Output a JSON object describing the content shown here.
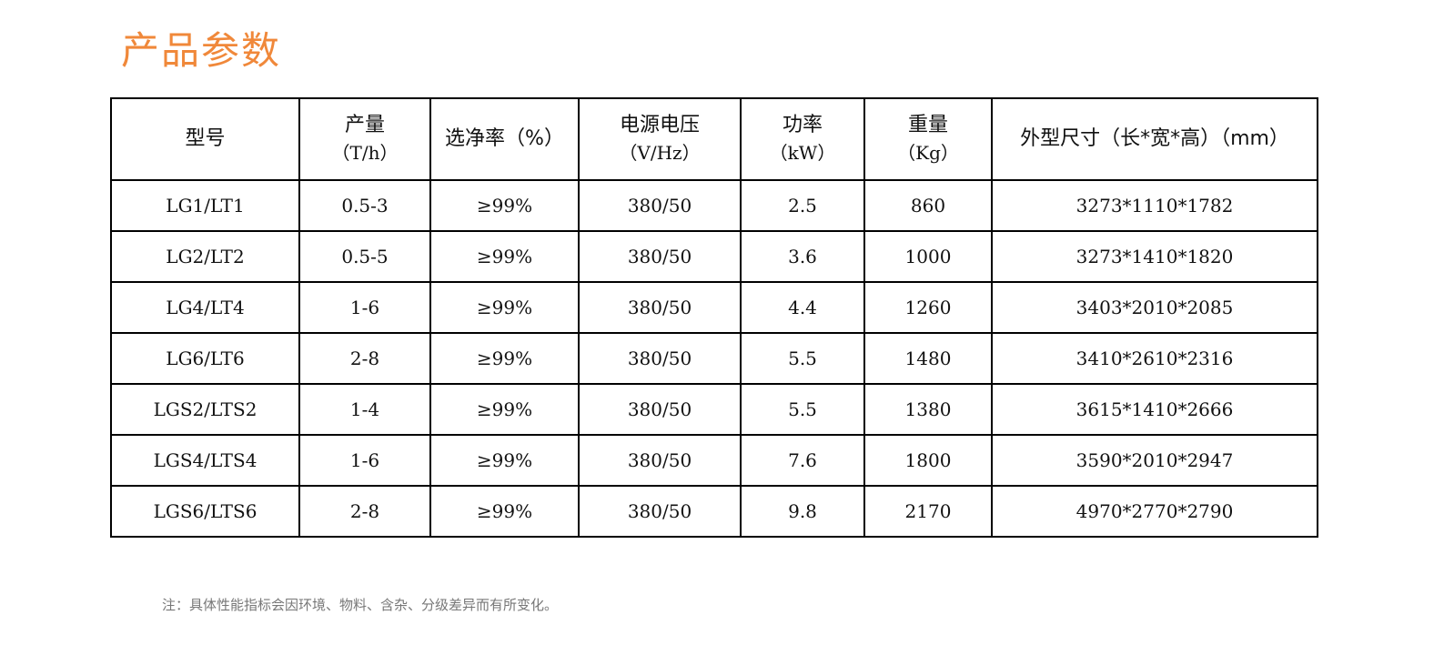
{
  "title": "产品参数",
  "table": {
    "headers": [
      {
        "label": "型号",
        "unit": ""
      },
      {
        "label": "产量",
        "unit": "（T/h）"
      },
      {
        "label": "选净率（%）",
        "unit": ""
      },
      {
        "label": "电源电压",
        "unit": "（V/Hz）"
      },
      {
        "label": "功率",
        "unit": "（kW）"
      },
      {
        "label": "重量",
        "unit": "（Kg）"
      },
      {
        "label": "外型尺寸（长*宽*高）（mm）",
        "unit": ""
      }
    ],
    "rows": [
      [
        "LG1/LT1",
        "0.5-3",
        "≥99%",
        "380/50",
        "2.5",
        "860",
        "3273*1110*1782"
      ],
      [
        "LG2/LT2",
        "0.5-5",
        "≥99%",
        "380/50",
        "3.6",
        "1000",
        "3273*1410*1820"
      ],
      [
        "LG4/LT4",
        "1-6",
        "≥99%",
        "380/50",
        "4.4",
        "1260",
        "3403*2010*2085"
      ],
      [
        "LG6/LT6",
        "2-8",
        "≥99%",
        "380/50",
        "5.5",
        "1480",
        "3410*2610*2316"
      ],
      [
        "LGS2/LTS2",
        "1-4",
        "≥99%",
        "380/50",
        "5.5",
        "1380",
        "3615*1410*2666"
      ],
      [
        "LGS4/LTS4",
        "1-6",
        "≥99%",
        "380/50",
        "7.6",
        "1800",
        "3590*2010*2947"
      ],
      [
        "LGS6/LTS6",
        "2-8",
        "≥99%",
        "380/50",
        "9.8",
        "2170",
        "4970*2770*2790"
      ]
    ]
  },
  "note": "注：具体性能指标会因环境、物料、含杂、分级差异而有所变化。",
  "colors": {
    "title": "#f0883a",
    "note": "#777777",
    "border": "#000000"
  }
}
